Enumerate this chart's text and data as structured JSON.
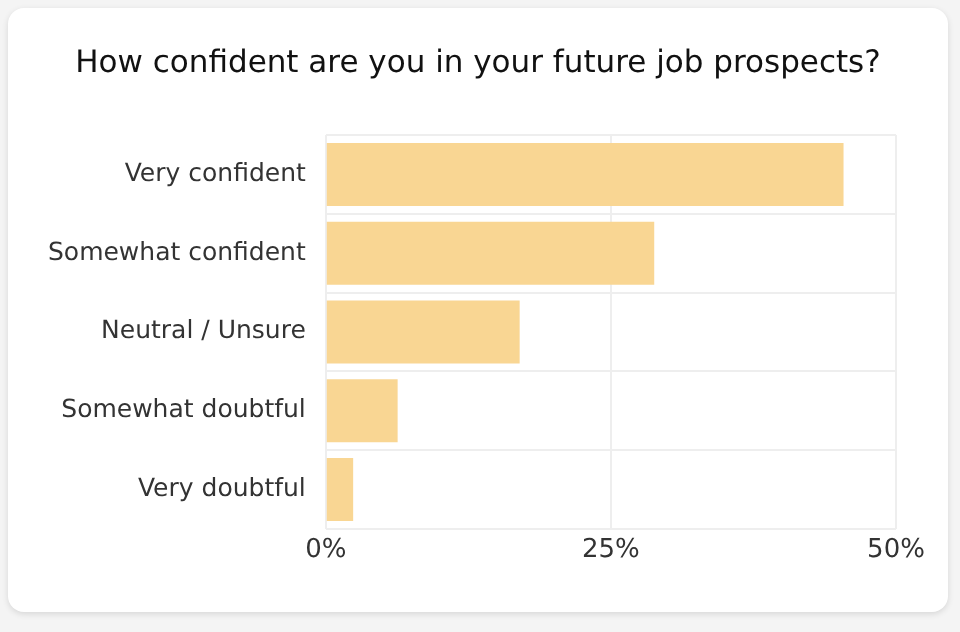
{
  "chart_data": {
    "type": "bar",
    "orientation": "horizontal",
    "title": "How confident are you in your future job prospects?",
    "categories": [
      "Very confident",
      "Somewhat confident",
      "Neutral / Unsure",
      "Somewhat doubtful",
      "Very doubtful"
    ],
    "values": [
      45.4,
      28.8,
      17.0,
      6.3,
      2.4
    ],
    "color": "#f9d693",
    "xlim": [
      0,
      50
    ],
    "xticks": [
      {
        "value": 0,
        "label": "0%"
      },
      {
        "value": 25,
        "label": "25%"
      },
      {
        "value": 50,
        "label": "50%"
      }
    ],
    "grid": true,
    "legend": false
  }
}
